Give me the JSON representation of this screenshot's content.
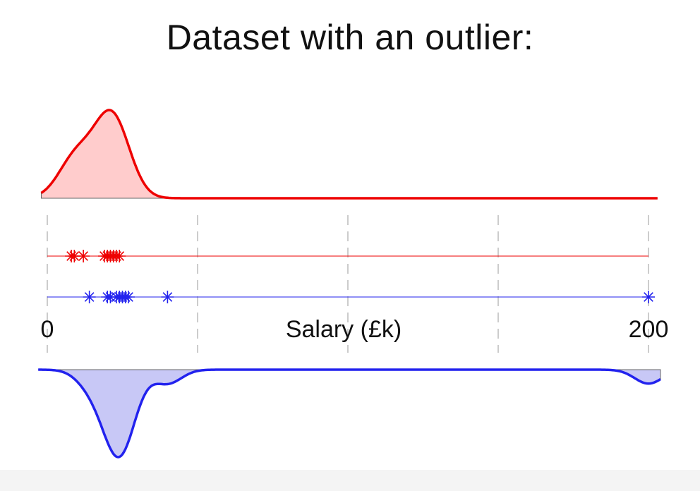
{
  "chart_data": {
    "type": "scatter",
    "title": "Dataset with an outlier:",
    "xlabel": "Salary (£k)",
    "xlim": [
      0,
      200
    ],
    "ticks": [
      {
        "value": 0,
        "label": "0"
      },
      {
        "value": 200,
        "label": "200"
      }
    ],
    "gridlines": [
      0,
      50,
      100,
      150,
      200
    ],
    "colors": {
      "red": "#ee0000",
      "blue": "#2222ee",
      "grid": "#bbbbbb"
    },
    "series": [
      {
        "color": "red",
        "values": [
          8,
          9,
          12,
          19,
          20,
          21,
          22,
          23,
          24
        ],
        "density_direction": "up"
      },
      {
        "color": "blue",
        "values": [
          14,
          20,
          21,
          23,
          24,
          25,
          26,
          27,
          40,
          200
        ],
        "density_direction": "down"
      }
    ]
  }
}
